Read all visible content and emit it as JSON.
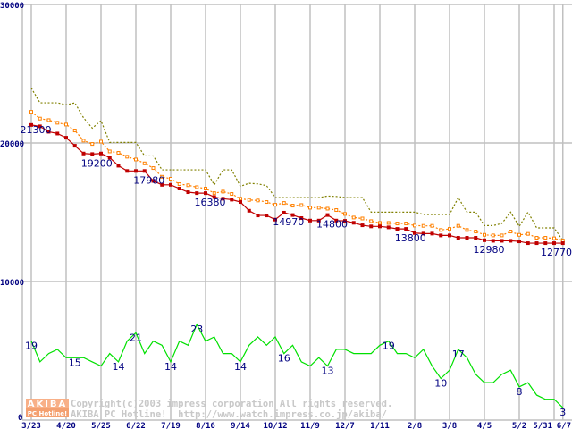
{
  "chart_data": {
    "type": "line",
    "title": "",
    "xlabel": "",
    "ylabel": "",
    "ylim": [
      0,
      30000
    ],
    "count_ylim": [
      0,
      100
    ],
    "grid": true,
    "y_ticks": [
      "0",
      "10000",
      "20000",
      "30000"
    ],
    "y_tick_values": [
      0,
      10000,
      20000,
      30000
    ],
    "x_ticks": [
      {
        "index": 0,
        "label": "3/23"
      },
      {
        "index": 4,
        "label": "4/20"
      },
      {
        "index": 8,
        "label": "5/25"
      },
      {
        "index": 12,
        "label": "6/22"
      },
      {
        "index": 16,
        "label": "7/19"
      },
      {
        "index": 20,
        "label": "8/16"
      },
      {
        "index": 24,
        "label": "9/14"
      },
      {
        "index": 28,
        "label": "10/12"
      },
      {
        "index": 32,
        "label": "11/9"
      },
      {
        "index": 36,
        "label": "12/7"
      },
      {
        "index": 40,
        "label": "1/11"
      },
      {
        "index": 44,
        "label": "2/8"
      },
      {
        "index": 48,
        "label": "3/8"
      },
      {
        "index": 52,
        "label": "4/5"
      },
      {
        "index": 56,
        "label": "5/2"
      },
      {
        "index": 60,
        "label": "5/31"
      },
      {
        "index": 61,
        "label": "6/7"
      }
    ],
    "series": [
      {
        "name": "max",
        "color": "#808000",
        "style": "dotted",
        "values": [
          23970,
          22900,
          22900,
          22900,
          22750,
          22900,
          21820,
          21070,
          21610,
          20040,
          20040,
          20040,
          20040,
          19070,
          19070,
          18060,
          18060,
          18060,
          18060,
          18060,
          18060,
          16980,
          18060,
          18060,
          16880,
          17090,
          17050,
          16920,
          16060,
          16060,
          16060,
          16060,
          16060,
          16060,
          16170,
          16140,
          16060,
          16060,
          16060,
          15010,
          15010,
          15010,
          15010,
          15010,
          15010,
          14840,
          14840,
          14840,
          14840,
          16060,
          15010,
          15010,
          14040,
          14040,
          14190,
          15010,
          13980,
          15010,
          13870,
          13870,
          13870,
          12960
        ]
      },
      {
        "name": "average",
        "color": "#ff8000",
        "style": "dotted-hollow-square",
        "values": [
          22250,
          21760,
          21650,
          21460,
          21330,
          20900,
          20170,
          19930,
          20100,
          19390,
          19290,
          19010,
          18810,
          18530,
          18190,
          17560,
          17420,
          17030,
          16950,
          16810,
          16710,
          16380,
          16490,
          16320,
          15980,
          15890,
          15850,
          15740,
          15540,
          15670,
          15480,
          15520,
          15330,
          15330,
          15260,
          15160,
          14880,
          14620,
          14550,
          14360,
          14230,
          14230,
          14190,
          14190,
          14040,
          14020,
          14020,
          13720,
          13800,
          14020,
          13720,
          13610,
          13370,
          13330,
          13330,
          13610,
          13370,
          13440,
          13160,
          13160,
          13120,
          12960
        ]
      },
      {
        "name": "min",
        "color": "#c00000",
        "style": "solid-square",
        "values": [
          21300,
          21200,
          20810,
          20680,
          20380,
          19800,
          19240,
          19200,
          19240,
          18940,
          18360,
          17980,
          17980,
          17980,
          17260,
          16980,
          16980,
          16710,
          16450,
          16380,
          16380,
          16100,
          15980,
          15910,
          15740,
          15110,
          14770,
          14770,
          14470,
          14970,
          14800,
          14580,
          14400,
          14400,
          14800,
          14400,
          14380,
          14240,
          14060,
          13980,
          13980,
          13910,
          13800,
          13800,
          13500,
          13460,
          13460,
          13330,
          13330,
          13160,
          13160,
          13160,
          12980,
          12940,
          12940,
          12940,
          12900,
          12770,
          12770,
          12770,
          12770,
          12770
        ]
      },
      {
        "name": "count",
        "color": "#00e000",
        "style": "solid",
        "axis": "count",
        "values": [
          19,
          14,
          16,
          17,
          15,
          15,
          15,
          14,
          13,
          16,
          14,
          19,
          21,
          16,
          19,
          18,
          14,
          19,
          18,
          23,
          19,
          20,
          16,
          16,
          14,
          18,
          20,
          18,
          20,
          16,
          18,
          14,
          13,
          15,
          13,
          17,
          17,
          16,
          16,
          16,
          18,
          19,
          16,
          16,
          15,
          17,
          13,
          10,
          12,
          17,
          15,
          11,
          9,
          9,
          11,
          12,
          8,
          9,
          6,
          5,
          5,
          3
        ]
      }
    ],
    "price_labels": [
      {
        "index": 0,
        "text": "21300"
      },
      {
        "index": 7,
        "text": "19200"
      },
      {
        "index": 13,
        "text": "17980"
      },
      {
        "index": 20,
        "text": "16380"
      },
      {
        "index": 29,
        "text": "14970"
      },
      {
        "index": 34,
        "text": "14800"
      },
      {
        "index": 43,
        "text": "13800"
      },
      {
        "index": 52,
        "text": "12980"
      },
      {
        "index": 61,
        "text": "12770"
      }
    ],
    "count_labels": [
      {
        "index": 0,
        "text": "19"
      },
      {
        "index": 5,
        "text": "15"
      },
      {
        "index": 10,
        "text": "14"
      },
      {
        "index": 12,
        "text": "21"
      },
      {
        "index": 16,
        "text": "14"
      },
      {
        "index": 19,
        "text": "23"
      },
      {
        "index": 24,
        "text": "14"
      },
      {
        "index": 29,
        "text": "16"
      },
      {
        "index": 34,
        "text": "13"
      },
      {
        "index": 41,
        "text": "19"
      },
      {
        "index": 47,
        "text": "10"
      },
      {
        "index": 49,
        "text": "17"
      },
      {
        "index": 56,
        "text": "8"
      },
      {
        "index": 61,
        "text": "3"
      }
    ]
  },
  "watermark": {
    "logo_top": "AKIBA",
    "logo_bottom": "PC Hotline!",
    "line1": "Copyright(c)2003 impress corporation All rights reserved.",
    "line2": "AKIBA PC Hotline!  http://www.watch.impress.co.jp/akiba/"
  }
}
